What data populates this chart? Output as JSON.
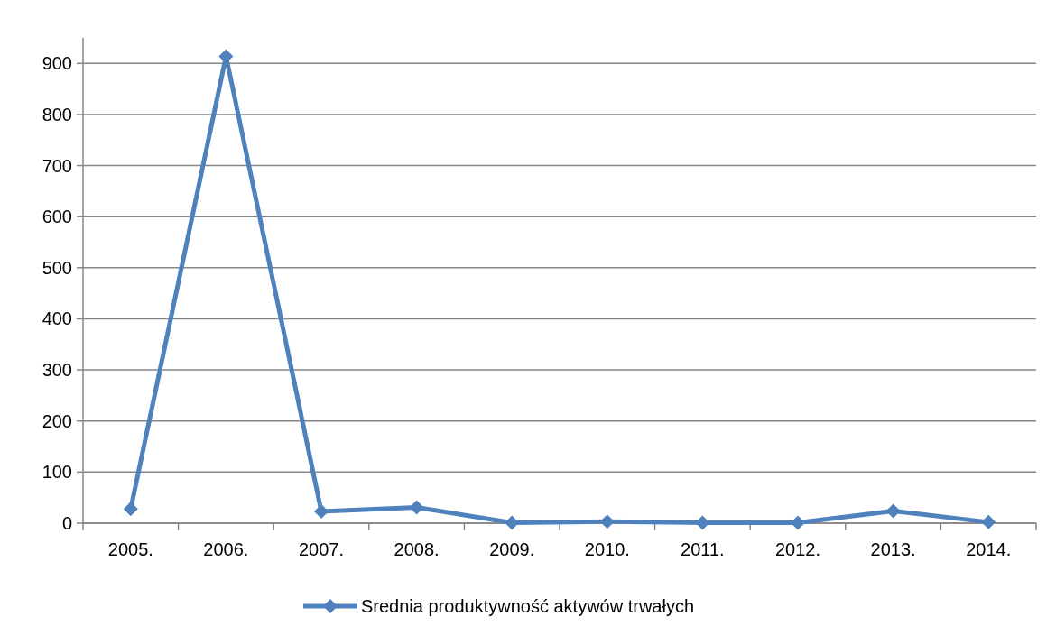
{
  "chart_data": {
    "type": "line",
    "categories": [
      "2005.",
      "2006.",
      "2007.",
      "2008.",
      "2009.",
      "2010.",
      "2011.",
      "2012.",
      "2013.",
      "2014."
    ],
    "series": [
      {
        "name": "Srednia produktywność aktywów trwałych",
        "color": "#4f81bd",
        "values": [
          28,
          914,
          23,
          31,
          1,
          3,
          1,
          1,
          24,
          2
        ]
      }
    ],
    "ylim": [
      0,
      950
    ],
    "yticks": [
      0,
      100,
      200,
      300,
      400,
      500,
      600,
      700,
      800,
      900
    ],
    "grid": "y",
    "legend": "bottom",
    "marker": "diamond",
    "line_style": "solid"
  }
}
